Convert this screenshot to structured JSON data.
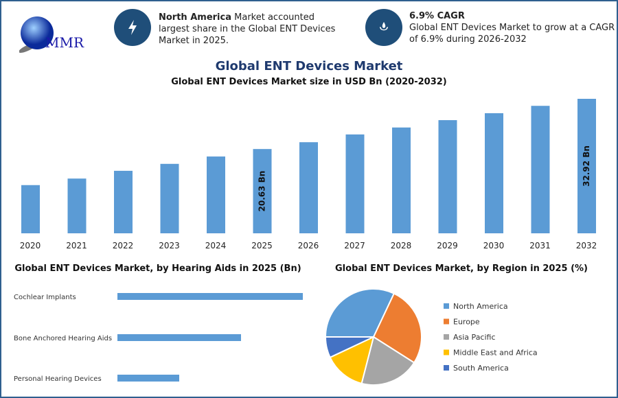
{
  "logo": {
    "text": "MMR"
  },
  "header": {
    "info1": {
      "icon": "lightning-icon",
      "bold": "North America",
      "text": " Market accounted largest share in the Global ENT Devices Market in 2025."
    },
    "info2": {
      "icon": "drop-hand-icon",
      "bold": "6.9% CAGR",
      "text": "Global ENT Devices Market to grow at a CAGR of 6.9% during 2026-2032"
    }
  },
  "main_title": "Global ENT Devices Market",
  "colors": {
    "bar": "#5b9bd5",
    "title": "#1f3a6e",
    "icon_bg": "#1f4e79"
  },
  "chart_data": [
    {
      "type": "bar",
      "title": "Global ENT Devices Market size in USD Bn (2020-2032)",
      "categories": [
        "2020",
        "2021",
        "2022",
        "2023",
        "2024",
        "2025",
        "2026",
        "2027",
        "2028",
        "2029",
        "2030",
        "2031",
        "2032"
      ],
      "values": [
        11.8,
        13.4,
        15.3,
        17.0,
        18.8,
        20.63,
        22.3,
        24.2,
        25.9,
        27.7,
        29.4,
        31.2,
        32.92
      ],
      "data_labels": {
        "2025": "20.63 Bn",
        "2032": "32.92 Bn"
      },
      "ylim": [
        0,
        33.5
      ],
      "grid": false
    },
    {
      "type": "bar",
      "orientation": "horizontal",
      "title": "Global ENT Devices Market, by Hearing Aids in 2025 (Bn)",
      "categories": [
        "Cochlear Implants",
        "Bone Anchored Hearing Aids",
        "Personal Hearing Devices"
      ],
      "values": [
        3,
        2,
        1
      ],
      "grid": false
    },
    {
      "type": "pie",
      "title": "Global ENT Devices Market, by Region in 2025 (%)",
      "legend_position": "right",
      "slices": [
        {
          "name": "North America",
          "value": 32,
          "color": "#5b9bd5"
        },
        {
          "name": "Europe",
          "value": 27,
          "color": "#ed7d31"
        },
        {
          "name": "Asia Pacific",
          "value": 20,
          "color": "#a5a5a5"
        },
        {
          "name": "Middle East and Africa",
          "value": 14,
          "color": "#ffc000"
        },
        {
          "name": "South America",
          "value": 7,
          "color": "#4472c4"
        }
      ]
    }
  ]
}
